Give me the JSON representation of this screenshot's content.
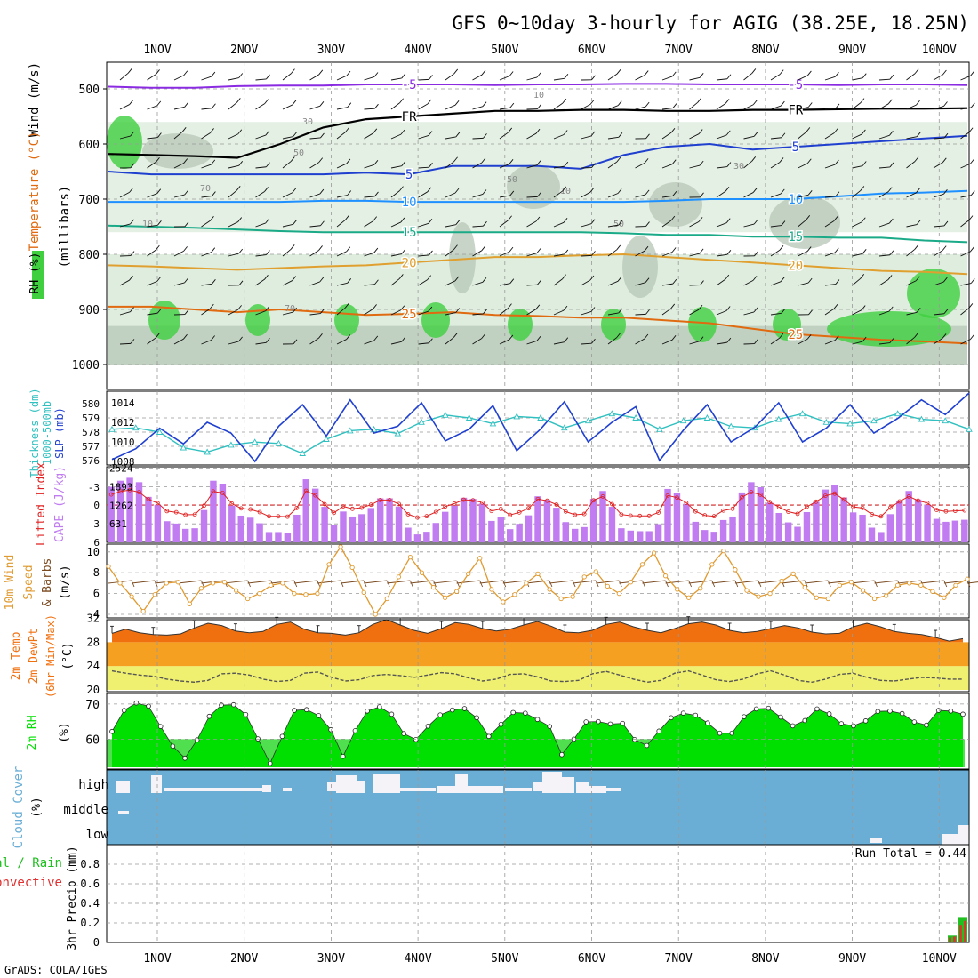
{
  "title": "GFS 0~10day 3-hourly for AGIG (38.25E, 18.25N)",
  "footer": "GrADS: COLA/IGES",
  "dates": [
    "1NOV",
    "2NOV",
    "3NOV",
    "4NOV",
    "5NOV",
    "6NOV",
    "7NOV",
    "8NOV",
    "9NOV",
    "10NOV"
  ],
  "colors": {
    "purple": "#8a2be2",
    "black": "#000000",
    "blue_dark": "#1f3fcf",
    "blue": "#1e90ff",
    "teal": "#1aaa88",
    "orange": "#e0a030",
    "orange_dark": "#e06a10",
    "rh_green": "#3fcf3f",
    "rh_grey": "#b9c9b9",
    "rh_light": "#dcebdc",
    "cape": "#c07cf0",
    "lifted": "#e02020",
    "thickness": "#30c0c0",
    "slp": "#2040d0",
    "wind": "#e09a30",
    "temp_fill": "#f07010",
    "dew_fill": "#f0f070",
    "band": "#f5a020",
    "rh2m": "#00e000",
    "cloud": "#6aaed6",
    "precip_green": "#20c020",
    "precip_red": "#e03030"
  },
  "chart_data": [
    {
      "panel": "upper-air",
      "type": "line",
      "ylabels": [
        "Wind (m/s)",
        "Temperature (°C)",
        "RH (%)",
        "(millibars)"
      ],
      "yticks": [
        500,
        600,
        700,
        800,
        900,
        1000
      ],
      "ylim": [
        1000,
        450
      ],
      "isotherms": [
        {
          "label": "-5",
          "color": "purple",
          "levels": [
            496,
            498,
            498,
            495,
            494,
            494,
            492,
            492,
            492,
            493,
            492,
            492,
            491,
            491,
            492,
            492,
            492,
            493,
            492,
            492,
            493
          ]
        },
        {
          "label": "FR",
          "color": "black",
          "levels": [
            618,
            620,
            622,
            625,
            600,
            570,
            555,
            550,
            545,
            540,
            540,
            538,
            538,
            540,
            540,
            538,
            538,
            537,
            536,
            536,
            535
          ]
        },
        {
          "label": "5",
          "color": "blue_dark",
          "levels": [
            650,
            655,
            655,
            655,
            655,
            655,
            652,
            655,
            640,
            640,
            640,
            645,
            620,
            605,
            600,
            610,
            605,
            600,
            595,
            590,
            585
          ]
        },
        {
          "label": "10",
          "color": "blue",
          "levels": [
            705,
            705,
            705,
            705,
            705,
            703,
            703,
            705,
            705,
            705,
            705,
            705,
            705,
            703,
            700,
            700,
            700,
            695,
            690,
            688,
            685
          ]
        },
        {
          "label": "15",
          "color": "teal",
          "levels": [
            748,
            750,
            752,
            755,
            758,
            760,
            760,
            760,
            760,
            760,
            760,
            760,
            762,
            765,
            765,
            768,
            768,
            770,
            770,
            775,
            778
          ]
        },
        {
          "label": "20",
          "color": "orange",
          "levels": [
            820,
            822,
            825,
            828,
            825,
            822,
            820,
            815,
            810,
            805,
            805,
            802,
            800,
            805,
            810,
            815,
            820,
            825,
            830,
            832,
            836
          ]
        },
        {
          "label": "25",
          "color": "orange_dark",
          "levels": [
            895,
            895,
            900,
            905,
            900,
            905,
            910,
            908,
            905,
            910,
            912,
            915,
            915,
            920,
            925,
            935,
            945,
            950,
            955,
            958,
            962
          ]
        }
      ],
      "contour_labels": [
        "10",
        "30",
        "50",
        "70",
        "10",
        "30",
        "50",
        "10",
        "50",
        "70"
      ]
    },
    {
      "panel": "thickness-slp",
      "type": "line",
      "ylabels": [
        "Thickness (dm)",
        "1000-500mb",
        "SLP (mb)"
      ],
      "left_ticks": [
        "576",
        "577",
        "578",
        "579",
        "580"
      ],
      "right_ticks": [
        "1008",
        "1010",
        "1012",
        "1014"
      ],
      "series": [
        {
          "name": "Thickness",
          "color": "thickness",
          "values": [
            578.2,
            578.3,
            578.0,
            576.9,
            576.6,
            577.1,
            577.3,
            577.2,
            576.5,
            577.5,
            578.1,
            578.2,
            577.9,
            578.7,
            579.2,
            579.0,
            578.6,
            579.1,
            579.0,
            578.3,
            578.8,
            579.3,
            579.0,
            578.2,
            578.8,
            579.0,
            578.4,
            578.3,
            578.9,
            579.3,
            578.7,
            578.6,
            578.8,
            579.3,
            578.9,
            578.8,
            578.2
          ]
        },
        {
          "name": "SLP",
          "color": "slp",
          "values": [
            1008.2,
            1009.3,
            1011.4,
            1009.8,
            1012.0,
            1010.9,
            1008.0,
            1011.6,
            1013.8,
            1010.6,
            1014.3,
            1010.9,
            1011.6,
            1014.0,
            1010.1,
            1011.3,
            1013.7,
            1009.1,
            1011.3,
            1014.1,
            1010.0,
            1012.0,
            1013.6,
            1008.1,
            1011.2,
            1013.8,
            1010.0,
            1011.5,
            1014.0,
            1010.0,
            1011.4,
            1013.8,
            1010.9,
            1012.4,
            1014.3,
            1012.8,
            1015.0
          ]
        }
      ]
    },
    {
      "panel": "cape-li",
      "type": "bar",
      "ylabels": [
        "Lifted Index",
        "CAPE (J/kg)"
      ],
      "left_ticks": [
        "-3",
        "0",
        "3",
        "6"
      ],
      "right_ticks": [
        "631",
        "1262",
        "1893",
        "2524"
      ],
      "cape": [
        1893,
        2100,
        2200,
        2050,
        1550,
        1280,
        720,
        640,
        460,
        480,
        1100,
        2100,
        2000,
        1250,
        910,
        840,
        650,
        350,
        350,
        330,
        940,
        2150,
        1830,
        1210,
        600,
        1050,
        880,
        960,
        1170,
        1500,
        1500,
        1220,
        500,
        270,
        360,
        660,
        1040,
        1250,
        1520,
        1480,
        1320,
        730,
        870,
        450,
        630,
        920,
        1570,
        1450,
        1180,
        690,
        460,
        520,
        1480,
        1750,
        1210,
        480,
        400,
        380,
        380,
        620,
        1820,
        1670,
        1310,
        700,
        420,
        360,
        760,
        880,
        1700,
        2050,
        1880,
        1350,
        1000,
        680,
        530,
        1030,
        1380,
        1800,
        1950,
        1530,
        1020,
        940,
        500,
        350,
        960,
        1400,
        1750,
        1460,
        1290,
        800,
        700,
        740,
        770
      ]
    },
    {
      "panel": "wind10m",
      "type": "line",
      "ylabels": [
        "10m Wind",
        "Speed",
        "& Barbs",
        "(m/s)"
      ],
      "yticks": [
        "4",
        "6",
        "8",
        "10"
      ],
      "values": [
        8.6,
        7.0,
        5.7,
        4.3,
        5.9,
        7.0,
        7.1,
        5.0,
        6.5,
        7.0,
        7.1,
        6.3,
        5.5,
        6.0,
        6.8,
        7.0,
        6.0,
        5.9,
        6.0,
        8.8,
        10.5,
        8.5,
        6.1,
        4.0,
        5.5,
        7.6,
        9.5,
        8.0,
        6.6,
        5.6,
        6.2,
        7.9,
        9.4,
        6.4,
        5.2,
        5.9,
        7.0,
        7.9,
        6.4,
        5.5,
        5.7,
        7.6,
        8.1,
        6.7,
        6.0,
        7.1,
        8.8,
        9.9,
        7.7,
        6.4,
        5.6,
        6.5,
        8.8,
        10.1,
        8.3,
        6.3,
        5.7,
        6.0,
        7.2,
        7.9,
        6.6,
        5.6,
        5.5,
        6.8,
        7.1,
        6.3,
        5.5,
        5.8,
        6.8,
        7.0,
        6.8,
        6.2,
        5.6,
        6.8,
        7.4
      ]
    },
    {
      "panel": "temp2m",
      "type": "area",
      "ylabels": [
        "2m Temp",
        "2m DewPt",
        "(6hr Min/Max)",
        "(°C)"
      ],
      "yticks": [
        "20",
        "24",
        "28",
        "32"
      ],
      "temp": [
        29.5,
        30.2,
        29.6,
        29.3,
        29.2,
        29.4,
        30.4,
        31.2,
        30.8,
        29.9,
        29.6,
        29.8,
        31.0,
        31.4,
        30.2,
        29.6,
        29.5,
        29.2,
        29.6,
        31.0,
        31.8,
        30.9,
        30.0,
        29.5,
        30.3,
        31.3,
        31.0,
        30.3,
        29.9,
        30.2,
        30.9,
        31.5,
        30.7,
        29.7,
        29.6,
        30.0,
        31.0,
        31.4,
        30.6,
        30.0,
        29.6,
        30.3,
        31.1,
        31.4,
        30.9,
        30.0,
        29.6,
        29.8,
        30.3,
        30.8,
        30.4,
        29.7,
        29.4,
        29.5,
        30.6,
        31.2,
        30.6,
        29.8,
        29.5,
        29.3,
        28.8,
        28.2,
        28.6
      ],
      "dew": [
        23.2,
        22.8,
        22.5,
        22.3,
        21.8,
        21.5,
        21.3,
        21.6,
        22.7,
        22.8,
        22.5,
        21.8,
        21.4,
        21.6,
        22.8,
        23.0,
        22.1,
        21.5,
        21.7,
        22.4,
        22.6,
        22.4,
        22.1,
        22.5,
        22.9,
        22.7,
        22.0,
        21.5,
        21.8,
        22.6,
        22.7,
        22.2,
        21.5,
        21.4,
        21.6,
        22.7,
        23.1,
        22.5,
        21.8,
        21.3,
        21.6,
        22.8,
        23.2,
        22.5,
        21.7,
        21.4,
        21.8,
        22.7,
        23.2,
        22.5,
        21.6,
        21.3,
        21.8,
        22.6,
        22.8,
        22.1,
        21.6,
        21.5,
        21.8,
        22.1,
        22.0,
        21.8,
        21.8
      ]
    },
    {
      "panel": "rh2m",
      "type": "area",
      "ylabels": [
        "2m RH",
        "(%)"
      ],
      "yticks": [
        "60",
        "70"
      ],
      "values": [
        62.2,
        68.2,
        70.3,
        69.4,
        63.6,
        58.0,
        54.6,
        59.8,
        66.5,
        69.7,
        69.8,
        67.0,
        60.1,
        53.1,
        60.8,
        68.2,
        68.4,
        66.7,
        62.7,
        55.1,
        62.4,
        68.0,
        69.2,
        67.1,
        61.6,
        59.9,
        63.7,
        66.9,
        68.3,
        68.7,
        66.1,
        60.8,
        64.2,
        67.6,
        67.4,
        65.6,
        63.6,
        55.6,
        60.0,
        64.9,
        65.0,
        64.3,
        64.5,
        59.9,
        58.2,
        62.3,
        66.1,
        67.4,
        66.8,
        64.6,
        61.7,
        61.7,
        66.4,
        68.6,
        68.8,
        66.3,
        63.8,
        65.3,
        68.6,
        67.2,
        64.4,
        63.8,
        65.2,
        67.9,
        68.0,
        67.3,
        64.9,
        64.0,
        68.2,
        68.0,
        67.1
      ]
    },
    {
      "panel": "cloud",
      "type": "area",
      "ylabels": [
        "Cloud Cover",
        "(%)"
      ],
      "levels": [
        "high",
        "middle",
        "low"
      ]
    },
    {
      "panel": "precip",
      "type": "bar",
      "ylabels": [
        "3hr Precip (mm)",
        "Total / Rain",
        "Convective"
      ],
      "yticks": [
        "0",
        "0.2",
        "0.4",
        "0.6",
        "0.8"
      ],
      "annotation": "Run Total = 0.44",
      "total": [
        0.07,
        0.07,
        0.26,
        0.26
      ],
      "convective": [
        0.05,
        0.06,
        0.18,
        0.22
      ]
    }
  ]
}
